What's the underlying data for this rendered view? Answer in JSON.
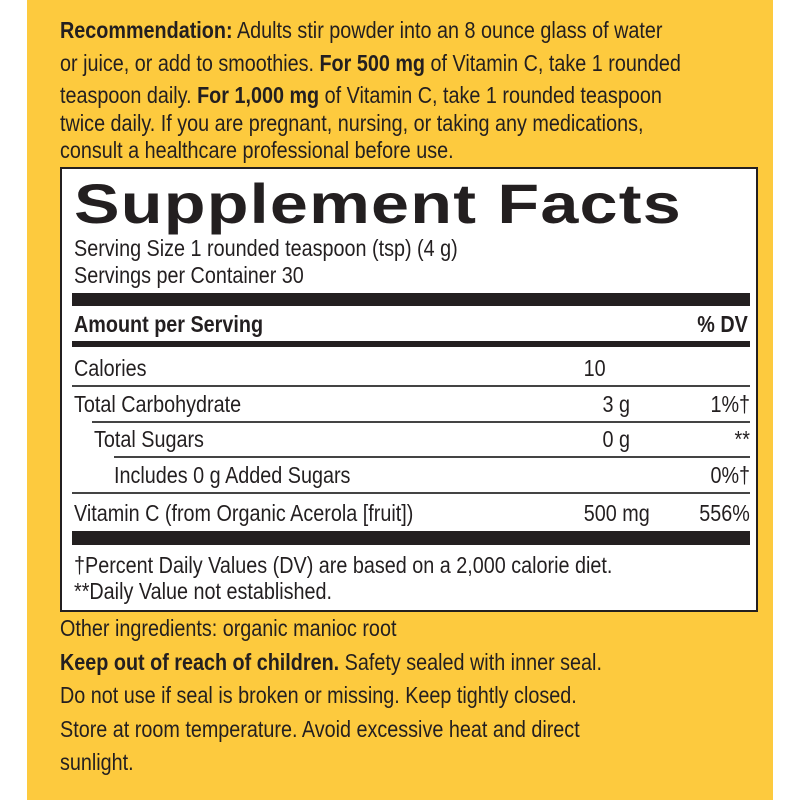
{
  "colors": {
    "panel": "#fdca3e",
    "text": "#231f20"
  },
  "recommendation": {
    "lines": [
      {
        "bold": "Recommendation:",
        "text": " Adults stir powder into an 8 ounce glass of water"
      },
      {
        "text": "or juice, or add to smoothies. ",
        "bold": "For 500 mg",
        "text2": " of Vitamin C, take 1 rounded"
      },
      {
        "text": "teaspoon daily. ",
        "bold": "For 1,000 mg",
        "text2": " of Vitamin C, take 1 rounded teaspoon"
      },
      {
        "text": "twice daily. If you are pregnant, nursing, or taking any medications,"
      },
      {
        "text": "consult a healthcare professional before use."
      }
    ]
  },
  "facts": {
    "title": "Supplement Facts",
    "serving_size": "Serving Size 1 rounded teaspoon (tsp) (4 g)",
    "servings_per_container": "Servings per Container 30",
    "header_amount": "Amount per Serving",
    "header_dv": "% DV",
    "rows": [
      {
        "name": "Calories",
        "amount": "10",
        "dv": ""
      },
      {
        "name": "Total Carbohydrate",
        "amount": "3 g",
        "dv": "1%†"
      },
      {
        "name": "Total Sugars",
        "amount": "0 g",
        "dv": "**"
      },
      {
        "name": "Includes 0 g Added Sugars",
        "amount": "",
        "dv": "0%†"
      },
      {
        "name": "Vitamin C (from Organic Acerola [fruit])",
        "amount": "500 mg",
        "dv": "556%"
      }
    ],
    "footnote1": "†Percent Daily Values (DV) are based on a 2,000 calorie diet.",
    "footnote2": "**Daily Value not established."
  },
  "other_ingredients": "Other ingredients: organic manioc root",
  "warning": {
    "bold": "Keep out of reach of children.",
    "line1": " Safety sealed with inner seal.",
    "line2": "Do not use if seal is broken or missing. Keep tightly closed.",
    "line3": "Store at room temperature. Avoid excessive heat and direct",
    "line4": "sunlight."
  }
}
